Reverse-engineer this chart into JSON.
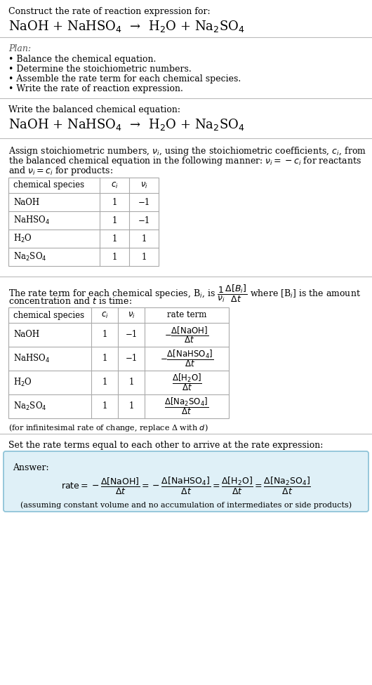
{
  "bg_color": "#ffffff",
  "text_color": "#000000",
  "gray_text": "#444444",
  "line_color": "#bbbbbb",
  "table_line_color": "#aaaaaa",
  "answer_box_color": "#dff0f7",
  "answer_box_border": "#90c4d8",
  "fig_width": 5.3,
  "fig_height": 9.76,
  "dpi": 100,
  "lmargin": 12,
  "section1_title": "Construct the rate of reaction expression for:",
  "section1_eq": "NaOH + NaHSO$_4$  →  H$_2$O + Na$_2$SO$_4$",
  "section2_title": "Plan:",
  "section2_bullets": [
    "• Balance the chemical equation.",
    "• Determine the stoichiometric numbers.",
    "• Assemble the rate term for each chemical species.",
    "• Write the rate of reaction expression."
  ],
  "section3_title": "Write the balanced chemical equation:",
  "section3_eq": "NaOH + NaHSO$_4$  →  H$_2$O + Na$_2$SO$_4$",
  "section4_line1": "Assign stoichiometric numbers, $\\nu_i$, using the stoichiometric coefficients, $c_i$, from",
  "section4_line2": "the balanced chemical equation in the following manner: $\\nu_i = -c_i$ for reactants",
  "section4_line3": "and $\\nu_i = c_i$ for products:",
  "table1_headers": [
    "chemical species",
    "$c_i$",
    "$\\nu_i$"
  ],
  "table1_rows": [
    [
      "NaOH",
      "1",
      "−1"
    ],
    [
      "NaHSO$_4$",
      "1",
      "−1"
    ],
    [
      "H$_2$O",
      "1",
      "1"
    ],
    [
      "Na$_2$SO$_4$",
      "1",
      "1"
    ]
  ],
  "section5_line1": "The rate term for each chemical species, B$_i$, is $\\dfrac{1}{\\nu_i}\\dfrac{\\Delta[B_i]}{\\Delta t}$ where [B$_i$] is the amount",
  "section5_line2": "concentration and $t$ is time:",
  "table2_headers": [
    "chemical species",
    "$c_i$",
    "$\\nu_i$",
    "rate term"
  ],
  "table2_rows": [
    [
      "NaOH",
      "1",
      "−1",
      "$-\\dfrac{\\Delta[\\mathrm{NaOH}]}{\\Delta t}$"
    ],
    [
      "NaHSO$_4$",
      "1",
      "−1",
      "$-\\dfrac{\\Delta[\\mathrm{NaHSO_4}]}{\\Delta t}$"
    ],
    [
      "H$_2$O",
      "1",
      "1",
      "$\\dfrac{\\Delta[\\mathrm{H_2O}]}{\\Delta t}$"
    ],
    [
      "Na$_2$SO$_4$",
      "1",
      "1",
      "$\\dfrac{\\Delta[\\mathrm{Na_2SO_4}]}{\\Delta t}$"
    ]
  ],
  "section5_footnote": "(for infinitesimal rate of change, replace Δ with $d$)",
  "section6_title": "Set the rate terms equal to each other to arrive at the rate expression:",
  "answer_label": "Answer:",
  "answer_eq": "$\\mathrm{rate} = -\\dfrac{\\Delta[\\mathrm{NaOH}]}{\\Delta t} = -\\dfrac{\\Delta[\\mathrm{NaHSO_4}]}{\\Delta t} = \\dfrac{\\Delta[\\mathrm{H_2O}]}{\\Delta t} = \\dfrac{\\Delta[\\mathrm{Na_2SO_4}]}{\\Delta t}$",
  "answer_footnote": "(assuming constant volume and no accumulation of intermediates or side products)"
}
